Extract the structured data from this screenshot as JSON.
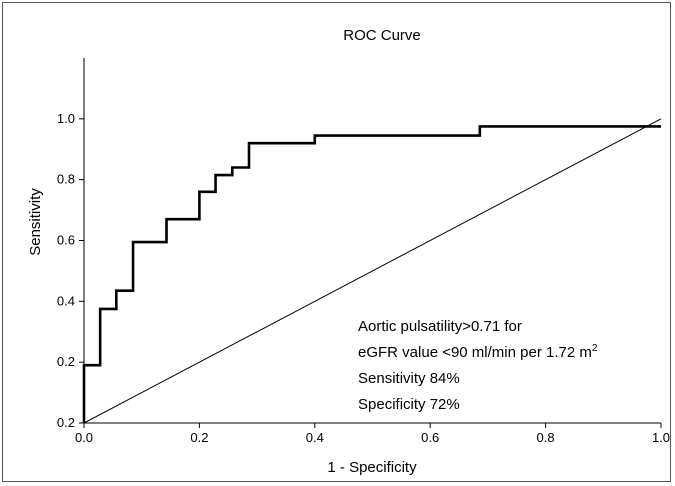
{
  "chart_data": {
    "type": "line",
    "title": "ROC Curve",
    "xlabel": "1 - Specificity",
    "ylabel": "Sensitivity",
    "xlim": [
      0.0,
      1.0
    ],
    "ylim": [
      0.0,
      1.2
    ],
    "x_ticks": [
      "0.0",
      "0.2",
      "0.4",
      "0.6",
      "0.8",
      "1.0"
    ],
    "y_ticks": [
      "0.2",
      "0.2",
      "0.4",
      "0.6",
      "0.8",
      "1.0"
    ],
    "grid": false,
    "series": [
      {
        "style": "step",
        "color": "#000000",
        "x": [
          0.0,
          0.0,
          0.028,
          0.028,
          0.056,
          0.056,
          0.085,
          0.085,
          0.143,
          0.143,
          0.2,
          0.2,
          0.228,
          0.228,
          0.257,
          0.257,
          0.286,
          0.286,
          0.4,
          0.4,
          0.686,
          0.686,
          1.0
        ],
        "y": [
          0.0,
          0.19,
          0.19,
          0.375,
          0.375,
          0.435,
          0.435,
          0.595,
          0.595,
          0.67,
          0.67,
          0.76,
          0.76,
          0.815,
          0.815,
          0.84,
          0.84,
          0.92,
          0.92,
          0.945,
          0.945,
          0.975,
          0.975
        ]
      },
      {
        "style": "diagonal",
        "color": "#000000",
        "x": [
          0.0,
          1.0
        ],
        "y": [
          0.0,
          1.0
        ]
      }
    ],
    "annotation": {
      "line1": "Aortic pulsatility>0.71 for",
      "line2_main": "eGFR value <90 ml/min per 1.72 m",
      "line2_sup": "2",
      "line3": "Sensitivity 84%",
      "line4": "Specificity 72%"
    }
  }
}
